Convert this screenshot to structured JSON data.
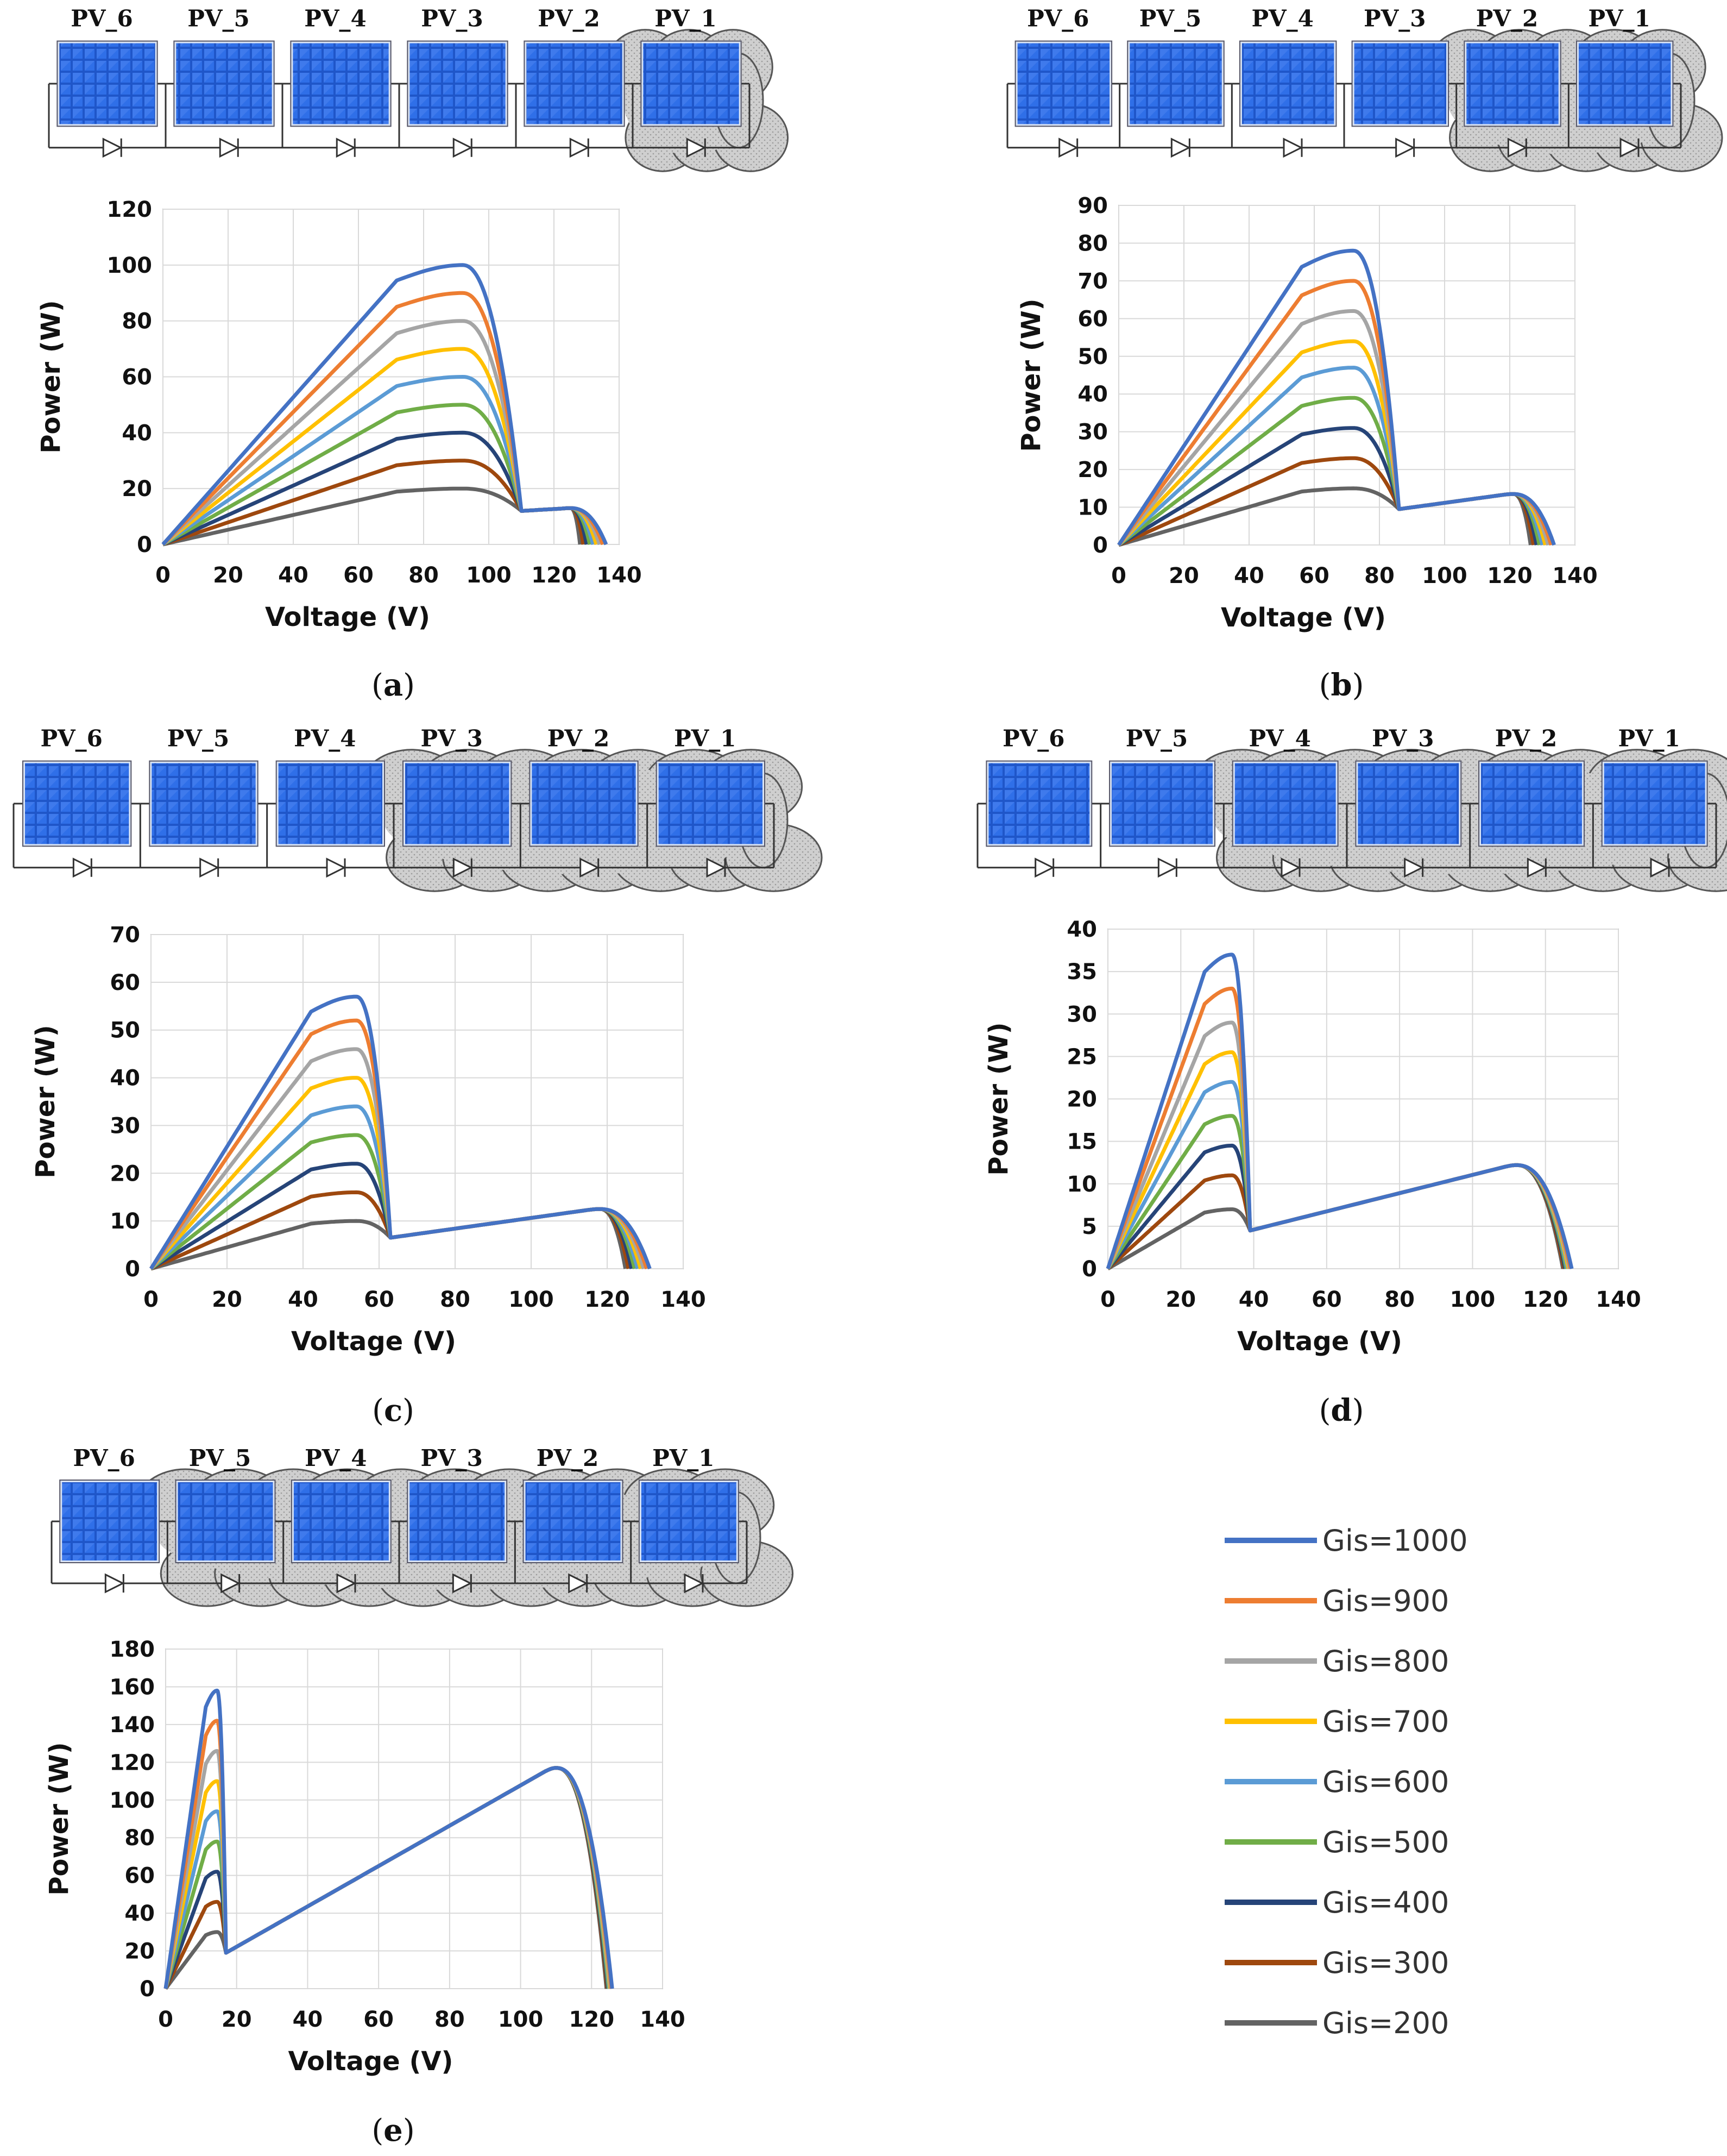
{
  "legend": {
    "entries": [
      {
        "label": "Gis=1000",
        "color": "#4472C4"
      },
      {
        "label": "Gis=900",
        "color": "#ED7D31"
      },
      {
        "label": "Gis=800",
        "color": "#A5A5A5"
      },
      {
        "label": "Gis=700",
        "color": "#FFC000"
      },
      {
        "label": "Gis=600",
        "color": "#5B9BD5"
      },
      {
        "label": "Gis=500",
        "color": "#70AD47"
      },
      {
        "label": "Gis=400",
        "color": "#264478"
      },
      {
        "label": "Gis=300",
        "color": "#9E480E"
      },
      {
        "label": "Gis=200",
        "color": "#636363"
      }
    ]
  },
  "pv_labels": [
    "PV_6",
    "PV_5",
    "PV_4",
    "PV_3",
    "PV_2",
    "PV_1"
  ],
  "chart_data": [
    {
      "type": "line",
      "panel": "a",
      "caption": "a",
      "shaded_modules": 1,
      "xlabel": "Voltage (V)",
      "ylabel": "Power (W)",
      "xlim": [
        0,
        140
      ],
      "ylim": [
        0,
        120
      ],
      "xticks": [
        0,
        20,
        40,
        60,
        80,
        100,
        120,
        140
      ],
      "yticks": [
        0,
        20,
        40,
        60,
        80,
        100,
        120
      ],
      "model": {
        "v_knee": 110,
        "peak1_v": 92,
        "tail_peak_v": 125,
        "tail_peak_p": 13,
        "tail_start_p": 12,
        "voc": 132,
        "voc_spread": 1
      },
      "series": [
        {
          "name": "Gis=1000",
          "peak": 100
        },
        {
          "name": "Gis=900",
          "peak": 90
        },
        {
          "name": "Gis=800",
          "peak": 80
        },
        {
          "name": "Gis=700",
          "peak": 70
        },
        {
          "name": "Gis=600",
          "peak": 60
        },
        {
          "name": "Gis=500",
          "peak": 50
        },
        {
          "name": "Gis=400",
          "peak": 40
        },
        {
          "name": "Gis=300",
          "peak": 30
        },
        {
          "name": "Gis=200",
          "peak": 20
        }
      ]
    },
    {
      "type": "line",
      "panel": "b",
      "caption": "b",
      "shaded_modules": 2,
      "xlabel": "Voltage (V)",
      "ylabel": "Power (W)",
      "xlim": [
        0,
        140
      ],
      "ylim": [
        0,
        90
      ],
      "xticks": [
        0,
        20,
        40,
        60,
        80,
        100,
        120,
        140
      ],
      "yticks": [
        0,
        10,
        20,
        30,
        40,
        50,
        60,
        70,
        80,
        90
      ],
      "model": {
        "v_knee": 86,
        "peak1_v": 72,
        "tail_peak_v": 121,
        "tail_peak_p": 13.5,
        "tail_start_p": 9.5,
        "voc": 130,
        "voc_spread": 0.9
      },
      "series": [
        {
          "name": "Gis=1000",
          "peak": 78
        },
        {
          "name": "Gis=900",
          "peak": 70
        },
        {
          "name": "Gis=800",
          "peak": 62
        },
        {
          "name": "Gis=700",
          "peak": 54
        },
        {
          "name": "Gis=600",
          "peak": 47
        },
        {
          "name": "Gis=500",
          "peak": 39
        },
        {
          "name": "Gis=400",
          "peak": 31
        },
        {
          "name": "Gis=300",
          "peak": 23
        },
        {
          "name": "Gis=200",
          "peak": 15
        }
      ]
    },
    {
      "type": "line",
      "panel": "c",
      "caption": "c",
      "shaded_modules": 3,
      "xlabel": "Voltage (V)",
      "ylabel": "Power (W)",
      "xlim": [
        0,
        140
      ],
      "ylim": [
        0,
        70
      ],
      "xticks": [
        0,
        20,
        40,
        60,
        80,
        100,
        120,
        140
      ],
      "yticks": [
        0,
        10,
        20,
        30,
        40,
        50,
        60,
        70
      ],
      "model": {
        "v_knee": 63,
        "peak1_v": 54,
        "tail_peak_v": 118,
        "tail_peak_p": 12.5,
        "tail_start_p": 6.5,
        "voc": 128,
        "voc_spread": 0.8
      },
      "series": [
        {
          "name": "Gis=1000",
          "peak": 57
        },
        {
          "name": "Gis=900",
          "peak": 52
        },
        {
          "name": "Gis=800",
          "peak": 46
        },
        {
          "name": "Gis=700",
          "peak": 40
        },
        {
          "name": "Gis=600",
          "peak": 34
        },
        {
          "name": "Gis=500",
          "peak": 28
        },
        {
          "name": "Gis=400",
          "peak": 22
        },
        {
          "name": "Gis=300",
          "peak": 16
        },
        {
          "name": "Gis=200",
          "peak": 10
        }
      ]
    },
    {
      "type": "line",
      "panel": "d",
      "caption": "d",
      "shaded_modules": 4,
      "xlabel": "Voltage (V)",
      "ylabel": "Power (W)",
      "xlim": [
        0,
        140
      ],
      "ylim": [
        0,
        40
      ],
      "xticks": [
        0,
        20,
        40,
        60,
        80,
        100,
        120,
        140
      ],
      "yticks": [
        0,
        5,
        10,
        15,
        20,
        25,
        30,
        35,
        40
      ],
      "model": {
        "v_knee": 39,
        "peak1_v": 34,
        "tail_peak_v": 112,
        "tail_peak_p": 12.2,
        "tail_start_p": 4.5,
        "voc": 126,
        "voc_spread": 0.3
      },
      "series": [
        {
          "name": "Gis=1000",
          "peak": 37
        },
        {
          "name": "Gis=900",
          "peak": 33
        },
        {
          "name": "Gis=800",
          "peak": 29
        },
        {
          "name": "Gis=700",
          "peak": 25.5
        },
        {
          "name": "Gis=600",
          "peak": 22
        },
        {
          "name": "Gis=500",
          "peak": 18
        },
        {
          "name": "Gis=400",
          "peak": 14.5
        },
        {
          "name": "Gis=300",
          "peak": 11
        },
        {
          "name": "Gis=200",
          "peak": 7
        }
      ]
    },
    {
      "type": "line",
      "panel": "e",
      "caption": "e",
      "shaded_modules": 5,
      "xlabel": "Voltage (V)",
      "ylabel": "Power (W)",
      "xlim": [
        0,
        140
      ],
      "ylim": [
        0,
        180
      ],
      "xticks": [
        0,
        20,
        40,
        60,
        80,
        100,
        120,
        140
      ],
      "yticks": [
        0,
        20,
        40,
        60,
        80,
        100,
        120,
        140,
        160,
        180
      ],
      "model": {
        "v_knee": 17,
        "peak1_v": 14.5,
        "tail_peak_v": 110,
        "tail_peak_p": 117,
        "tail_start_p": 19,
        "voc": 125,
        "voc_spread": 0.2
      },
      "series": [
        {
          "name": "Gis=1000",
          "peak": 158
        },
        {
          "name": "Gis=900",
          "peak": 142
        },
        {
          "name": "Gis=800",
          "peak": 126
        },
        {
          "name": "Gis=700",
          "peak": 110
        },
        {
          "name": "Gis=600",
          "peak": 94
        },
        {
          "name": "Gis=500",
          "peak": 78
        },
        {
          "name": "Gis=400",
          "peak": 62
        },
        {
          "name": "Gis=300",
          "peak": 46
        },
        {
          "name": "Gis=200",
          "peak": 30
        }
      ]
    }
  ]
}
